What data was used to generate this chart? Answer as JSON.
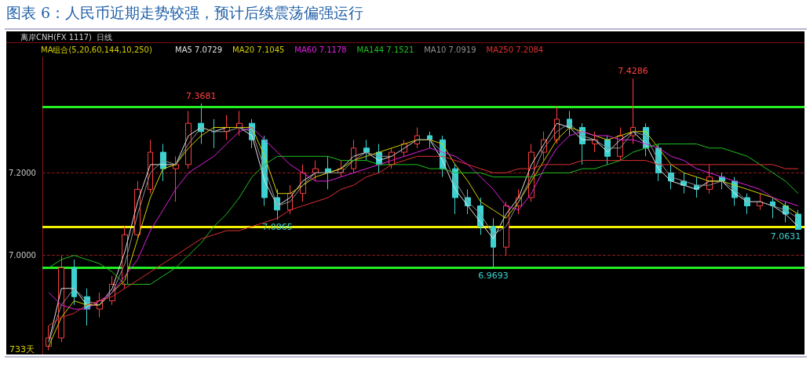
{
  "chart_data": {
    "type": "candlestick",
    "title": "图表 6：人民币近期走势较强，预计后续震荡偏强运行",
    "subtitle": "离岸CNH(FX 1117)  日线",
    "annotations": [
      "733天",
      {
        "text": "7.3681",
        "y": 7.3681
      },
      {
        "text": "7.4286",
        "y": 7.4286
      },
      {
        "text": "7.0865",
        "y": 7.0865
      },
      {
        "text": "6.9693",
        "y": 6.9693
      },
      {
        "text": "7.0631",
        "y": 7.0631
      }
    ],
    "categories": [
      null,
      null,
      null,
      null,
      null,
      null,
      null,
      null,
      null,
      null,
      null,
      null,
      null,
      null,
      null,
      null,
      null,
      null,
      null,
      null,
      null,
      null,
      null,
      null,
      null,
      null,
      null,
      null,
      null,
      null,
      null,
      null,
      null,
      null,
      null,
      null,
      null,
      null,
      null,
      null,
      null,
      null,
      null,
      null,
      null,
      null,
      null,
      null,
      null,
      null,
      null,
      null,
      null,
      null,
      null,
      null,
      null,
      null,
      null,
      null
    ],
    "ohlc": [
      [
        6.78,
        6.83,
        6.77,
        6.8
      ],
      [
        6.8,
        7.0,
        6.79,
        6.97
      ],
      [
        6.97,
        6.99,
        6.88,
        6.9
      ],
      [
        6.9,
        6.92,
        6.83,
        6.87
      ],
      [
        6.87,
        6.91,
        6.85,
        6.89
      ],
      [
        6.89,
        6.95,
        6.88,
        6.93
      ],
      [
        6.93,
        7.07,
        6.92,
        7.05
      ],
      [
        7.05,
        7.18,
        7.04,
        7.16
      ],
      [
        7.16,
        7.28,
        7.15,
        7.25
      ],
      [
        7.25,
        7.27,
        7.18,
        7.21
      ],
      [
        7.21,
        7.24,
        7.13,
        7.22
      ],
      [
        7.22,
        7.35,
        7.21,
        7.32
      ],
      [
        7.32,
        7.3681,
        7.27,
        7.3
      ],
      [
        7.3,
        7.33,
        7.26,
        7.3
      ],
      [
        7.3,
        7.34,
        7.28,
        7.31
      ],
      [
        7.31,
        7.35,
        7.29,
        7.32
      ],
      [
        7.32,
        7.33,
        7.26,
        7.28
      ],
      [
        7.28,
        7.29,
        7.12,
        7.14
      ],
      [
        7.14,
        7.16,
        7.0865,
        7.11
      ],
      [
        7.11,
        7.17,
        7.1,
        7.15
      ],
      [
        7.15,
        7.22,
        7.13,
        7.2
      ],
      [
        7.2,
        7.23,
        7.18,
        7.21
      ],
      [
        7.21,
        7.24,
        7.16,
        7.2
      ],
      [
        7.2,
        7.23,
        7.19,
        7.21
      ],
      [
        7.21,
        7.28,
        7.2,
        7.26
      ],
      [
        7.26,
        7.28,
        7.23,
        7.25
      ],
      [
        7.25,
        7.27,
        7.2,
        7.22
      ],
      [
        7.22,
        7.26,
        7.21,
        7.25
      ],
      [
        7.25,
        7.28,
        7.24,
        7.27
      ],
      [
        7.27,
        7.31,
        7.26,
        7.29
      ],
      [
        7.29,
        7.3,
        7.26,
        7.28
      ],
      [
        7.28,
        7.29,
        7.19,
        7.21
      ],
      [
        7.21,
        7.22,
        7.1,
        7.14
      ],
      [
        7.14,
        7.16,
        7.1,
        7.12
      ],
      [
        7.12,
        7.14,
        7.05,
        7.07
      ],
      [
        7.07,
        7.09,
        6.9693,
        7.02
      ],
      [
        7.02,
        7.13,
        7.0,
        7.12
      ],
      [
        7.12,
        7.16,
        7.1,
        7.14
      ],
      [
        7.14,
        7.27,
        7.13,
        7.25
      ],
      [
        7.25,
        7.3,
        7.23,
        7.28
      ],
      [
        7.28,
        7.36,
        7.27,
        7.33
      ],
      [
        7.33,
        7.35,
        7.29,
        7.31
      ],
      [
        7.31,
        7.32,
        7.22,
        7.27
      ],
      [
        7.27,
        7.3,
        7.25,
        7.28
      ],
      [
        7.28,
        7.29,
        7.22,
        7.24
      ],
      [
        7.24,
        7.31,
        7.23,
        7.29
      ],
      [
        7.29,
        7.4286,
        7.27,
        7.31
      ],
      [
        7.31,
        7.32,
        7.24,
        7.26
      ],
      [
        7.26,
        7.27,
        7.18,
        7.2
      ],
      [
        7.2,
        7.22,
        7.16,
        7.18
      ],
      [
        7.18,
        7.2,
        7.15,
        7.17
      ],
      [
        7.17,
        7.19,
        7.14,
        7.16
      ],
      [
        7.16,
        7.22,
        7.15,
        7.19
      ],
      [
        7.19,
        7.2,
        7.16,
        7.18
      ],
      [
        7.18,
        7.19,
        7.12,
        7.14
      ],
      [
        7.14,
        7.15,
        7.1,
        7.12
      ],
      [
        7.12,
        7.15,
        7.11,
        7.13
      ],
      [
        7.13,
        7.14,
        7.09,
        7.12
      ],
      [
        7.12,
        7.13,
        7.08,
        7.1
      ],
      [
        7.1,
        7.11,
        7.0631,
        7.0631
      ]
    ],
    "colors": [
      "#ff3c3c",
      "#ff3c3c",
      "#3cd2d2",
      "#3cd2d2",
      "#ff3c3c",
      "#ff3c3c",
      "#ff3c3c",
      "#ff3c3c",
      "#ff3c3c",
      "#3cd2d2",
      "#ff3c3c",
      "#ff3c3c",
      "#3cd2d2",
      "#3cd2d2",
      "#ff3c3c",
      "#ff3c3c",
      "#3cd2d2",
      "#3cd2d2",
      "#3cd2d2",
      "#ff3c3c",
      "#ff3c3c",
      "#ff3c3c",
      "#3cd2d2",
      "#ff3c3c",
      "#ff3c3c",
      "#3cd2d2",
      "#3cd2d2",
      "#ff3c3c",
      "#ff3c3c",
      "#ff3c3c",
      "#3cd2d2",
      "#3cd2d2",
      "#3cd2d2",
      "#3cd2d2",
      "#3cd2d2",
      "#3cd2d2",
      "#ff3c3c",
      "#ff3c3c",
      "#ff3c3c",
      "#ff3c3c",
      "#ff3c3c",
      "#3cd2d2",
      "#3cd2d2",
      "#ff3c3c",
      "#3cd2d2",
      "#ff3c3c",
      "#ff3c3c",
      "#3cd2d2",
      "#3cd2d2",
      "#3cd2d2",
      "#3cd2d2",
      "#3cd2d2",
      "#ff3c3c",
      "#3cd2d2",
      "#3cd2d2",
      "#3cd2d2",
      "#ff3c3c",
      "#3cd2d2",
      "#3cd2d2",
      "#3cd2d2"
    ],
    "series": [
      {
        "type": "line",
        "name": "MA5 7.0729",
        "color": "#e0e0e0",
        "values": [
          6.79,
          6.92,
          6.92,
          6.88,
          6.88,
          6.92,
          7.01,
          7.13,
          7.22,
          7.22,
          7.22,
          7.29,
          7.31,
          7.3,
          7.31,
          7.31,
          7.29,
          7.18,
          7.12,
          7.14,
          7.18,
          7.2,
          7.2,
          7.21,
          7.24,
          7.25,
          7.23,
          7.24,
          7.26,
          7.28,
          7.28,
          7.23,
          7.16,
          7.12,
          7.08,
          7.04,
          7.1,
          7.14,
          7.22,
          7.27,
          7.32,
          7.31,
          7.28,
          7.28,
          7.25,
          7.28,
          7.3,
          7.27,
          7.21,
          7.18,
          7.17,
          7.16,
          7.18,
          7.18,
          7.15,
          7.13,
          7.13,
          7.12,
          7.1,
          7.07
        ]
      },
      {
        "type": "line",
        "name": "MA20 7.1045",
        "color": "#d4cf00",
        "values": [
          6.78,
          6.85,
          6.89,
          6.88,
          6.88,
          6.91,
          6.94,
          7.04,
          7.14,
          7.21,
          7.22,
          7.26,
          7.29,
          7.31,
          7.31,
          7.31,
          7.31,
          7.24,
          7.15,
          7.15,
          7.17,
          7.19,
          7.2,
          7.21,
          7.23,
          7.24,
          7.25,
          7.26,
          7.27,
          7.28,
          7.28,
          7.27,
          7.22,
          7.18,
          7.13,
          7.11,
          7.09,
          7.13,
          7.18,
          7.23,
          7.28,
          7.31,
          7.3,
          7.29,
          7.28,
          7.29,
          7.3,
          7.3,
          7.26,
          7.22,
          7.2,
          7.19,
          7.18,
          7.18,
          7.17,
          7.16,
          7.15,
          7.14,
          7.12,
          7.1
        ]
      },
      {
        "type": "line",
        "name": "MA60 7.1178",
        "color": "#e020e0",
        "values": [
          6.91,
          6.88,
          6.87,
          6.87,
          6.89,
          6.91,
          6.95,
          6.99,
          7.06,
          7.11,
          7.16,
          7.2,
          7.22,
          7.24,
          7.27,
          7.3,
          7.31,
          7.28,
          7.25,
          7.22,
          7.2,
          7.18,
          7.18,
          7.19,
          7.2,
          7.21,
          7.22,
          7.23,
          7.24,
          7.25,
          7.26,
          7.25,
          7.24,
          7.22,
          7.19,
          7.16,
          7.12,
          7.11,
          7.15,
          7.21,
          7.26,
          7.29,
          7.3,
          7.29,
          7.29,
          7.28,
          7.28,
          7.27,
          7.26,
          7.24,
          7.23,
          7.21,
          7.2,
          7.19,
          7.18,
          7.17,
          7.16,
          7.14,
          7.13,
          7.12
        ]
      },
      {
        "type": "line",
        "name": "MA144 7.1521",
        "color": "#20c020",
        "values": [
          6.97,
          6.99,
          7.0,
          6.99,
          6.98,
          6.96,
          6.93,
          6.93,
          6.93,
          6.95,
          6.97,
          7.0,
          7.03,
          7.07,
          7.1,
          7.14,
          7.19,
          7.22,
          7.24,
          7.24,
          7.24,
          7.24,
          7.24,
          7.23,
          7.23,
          7.23,
          7.22,
          7.22,
          7.22,
          7.22,
          7.21,
          7.21,
          7.2,
          7.2,
          7.2,
          7.19,
          7.19,
          7.19,
          7.19,
          7.2,
          7.2,
          7.2,
          7.21,
          7.21,
          7.22,
          7.23,
          7.25,
          7.26,
          7.27,
          7.27,
          7.27,
          7.27,
          7.26,
          7.26,
          7.25,
          7.24,
          7.22,
          7.2,
          7.18,
          7.15
        ]
      },
      {
        "type": "line",
        "name": "MA10 7.0919",
        "color": "#909090",
        "values": [
          6.79,
          6.88,
          6.92,
          6.89,
          6.88,
          6.91,
          6.98,
          7.1,
          7.2,
          7.23,
          7.22,
          7.27,
          7.31,
          7.3,
          7.3,
          7.31,
          7.3,
          7.21,
          7.12,
          7.13,
          7.17,
          7.2,
          7.2,
          7.2,
          7.23,
          7.25,
          7.24,
          7.24,
          7.26,
          7.28,
          7.28,
          7.25,
          7.18,
          7.13,
          7.1,
          7.05,
          7.07,
          7.13,
          7.19,
          7.26,
          7.3,
          7.32,
          7.29,
          7.28,
          7.26,
          7.26,
          7.3,
          7.29,
          7.23,
          7.19,
          7.18,
          7.17,
          7.17,
          7.18,
          7.16,
          7.13,
          7.13,
          7.12,
          7.11,
          7.09
        ]
      },
      {
        "type": "line",
        "name": "MA250 7.2084",
        "color": "#e03030",
        "values": [
          6.83,
          6.85,
          6.86,
          6.88,
          6.89,
          6.9,
          6.92,
          6.94,
          6.96,
          6.98,
          7.0,
          7.02,
          7.04,
          7.05,
          7.06,
          7.06,
          7.07,
          7.08,
          7.09,
          7.11,
          7.12,
          7.13,
          7.14,
          7.16,
          7.17,
          7.19,
          7.2,
          7.22,
          7.23,
          7.24,
          7.24,
          7.24,
          7.23,
          7.22,
          7.21,
          7.2,
          7.2,
          7.21,
          7.21,
          7.22,
          7.22,
          7.22,
          7.23,
          7.23,
          7.23,
          7.23,
          7.23,
          7.23,
          7.22,
          7.22,
          7.22,
          7.22,
          7.22,
          7.22,
          7.22,
          7.22,
          7.22,
          7.22,
          7.21,
          7.21
        ]
      }
    ],
    "ylim": [
      6.76,
      7.48
    ],
    "yticks": [
      {
        "value": 7.0,
        "label": "7.0000"
      },
      {
        "value": 7.2,
        "label": "7.2000"
      }
    ],
    "grid": "y",
    "legend_title": "MA组合(5,20,60,144,10,250)",
    "tick_labels": "y",
    "ref_lines": [
      {
        "axis": "y",
        "value": 7.36,
        "color": "#22ee22"
      },
      {
        "axis": "y",
        "value": 7.07,
        "color": "#f0f000"
      },
      {
        "axis": "y",
        "value": 6.97,
        "color": "#22ee22"
      }
    ]
  }
}
